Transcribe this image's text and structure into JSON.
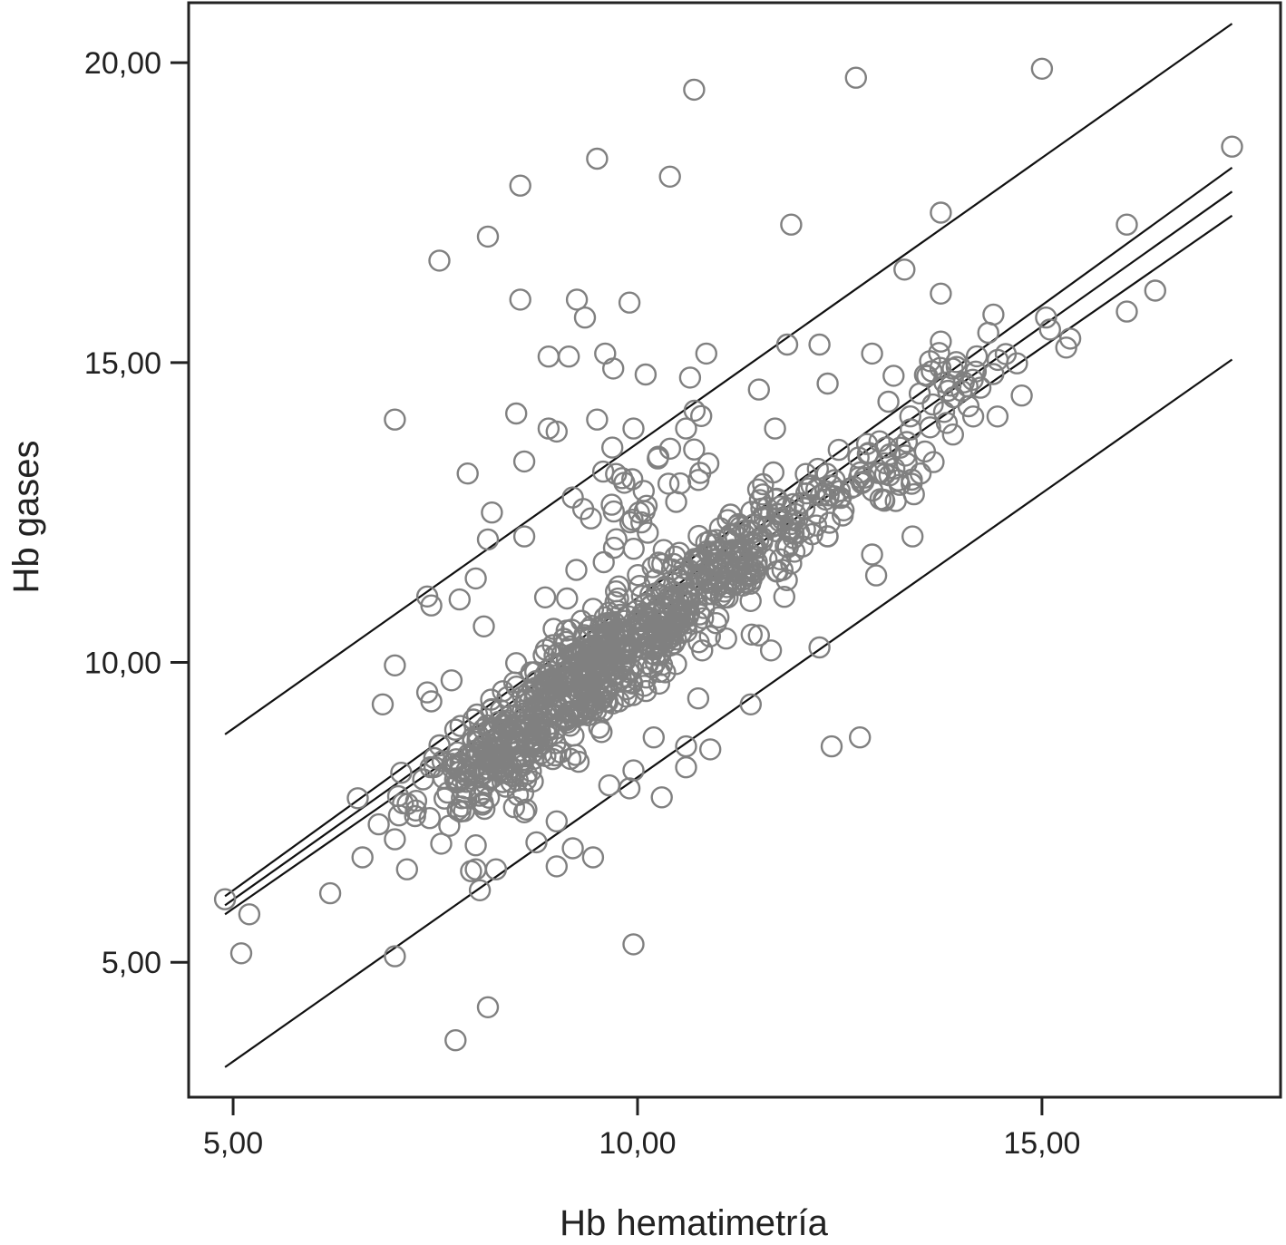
{
  "chart_data": {
    "type": "scatter",
    "xlabel": "Hb hematimetría",
    "ylabel": "Hb gases",
    "xlim": [
      4.45,
      17.95
    ],
    "ylim": [
      2.75,
      21.0
    ],
    "xticks": [
      {
        "value": 5,
        "label": "5,00"
      },
      {
        "value": 10,
        "label": "10,00"
      },
      {
        "value": 15,
        "label": "15,00"
      }
    ],
    "yticks": [
      {
        "value": 5,
        "label": "5,00"
      },
      {
        "value": 10,
        "label": "10,00"
      },
      {
        "value": 15,
        "label": "15,00"
      },
      {
        "value": 20,
        "label": "20,00"
      }
    ],
    "grid": false,
    "legend": "none",
    "colors": {
      "points": "#808080",
      "lines": "#111111",
      "frame": "#222222"
    },
    "lines": [
      {
        "x": [
          4.9,
          17.35
        ],
        "y": [
          8.8,
          20.65
        ]
      },
      {
        "x": [
          4.9,
          17.35
        ],
        "y": [
          6.1,
          18.25
        ]
      },
      {
        "x": [
          4.9,
          17.35
        ],
        "y": [
          5.95,
          17.85
        ]
      },
      {
        "x": [
          4.9,
          17.35
        ],
        "y": [
          5.8,
          17.45
        ]
      },
      {
        "x": [
          4.9,
          17.35
        ],
        "y": [
          3.25,
          15.05
        ]
      }
    ],
    "points": [
      {
        "x": 15.0,
        "y": 19.9
      },
      {
        "x": 12.7,
        "y": 19.75
      },
      {
        "x": 10.7,
        "y": 19.55
      },
      {
        "x": 9.5,
        "y": 18.4
      },
      {
        "x": 10.4,
        "y": 18.1
      },
      {
        "x": 8.55,
        "y": 17.95
      },
      {
        "x": 17.35,
        "y": 18.6
      },
      {
        "x": 13.75,
        "y": 17.5
      },
      {
        "x": 11.9,
        "y": 17.3
      },
      {
        "x": 16.05,
        "y": 17.3
      },
      {
        "x": 8.15,
        "y": 17.1
      },
      {
        "x": 7.55,
        "y": 16.7
      },
      {
        "x": 13.3,
        "y": 16.55
      },
      {
        "x": 9.25,
        "y": 16.05
      },
      {
        "x": 9.9,
        "y": 16.0
      },
      {
        "x": 8.55,
        "y": 16.05
      },
      {
        "x": 13.75,
        "y": 16.15
      },
      {
        "x": 16.4,
        "y": 16.2
      },
      {
        "x": 16.05,
        "y": 15.85
      },
      {
        "x": 9.35,
        "y": 15.75
      },
      {
        "x": 14.4,
        "y": 15.8
      },
      {
        "x": 15.35,
        "y": 15.4
      },
      {
        "x": 15.05,
        "y": 15.75
      },
      {
        "x": 15.1,
        "y": 15.55
      },
      {
        "x": 15.3,
        "y": 15.25
      },
      {
        "x": 13.75,
        "y": 15.35
      },
      {
        "x": 12.9,
        "y": 15.15
      },
      {
        "x": 9.6,
        "y": 15.15
      },
      {
        "x": 8.9,
        "y": 15.1
      },
      {
        "x": 9.15,
        "y": 15.1
      },
      {
        "x": 10.85,
        "y": 15.15
      },
      {
        "x": 11.85,
        "y": 15.3
      },
      {
        "x": 12.25,
        "y": 15.3
      },
      {
        "x": 9.7,
        "y": 14.9
      },
      {
        "x": 10.1,
        "y": 14.8
      },
      {
        "x": 10.65,
        "y": 14.75
      },
      {
        "x": 12.35,
        "y": 14.65
      },
      {
        "x": 14.75,
        "y": 14.45
      },
      {
        "x": 14.45,
        "y": 14.1
      },
      {
        "x": 14.15,
        "y": 14.1
      },
      {
        "x": 7.0,
        "y": 14.05
      },
      {
        "x": 8.5,
        "y": 14.15
      },
      {
        "x": 8.9,
        "y": 13.9
      },
      {
        "x": 9.0,
        "y": 13.85
      },
      {
        "x": 9.5,
        "y": 14.05
      },
      {
        "x": 9.95,
        "y": 13.9
      },
      {
        "x": 10.6,
        "y": 13.9
      },
      {
        "x": 11.7,
        "y": 13.9
      },
      {
        "x": 11.5,
        "y": 14.55
      },
      {
        "x": 13.9,
        "y": 13.8
      },
      {
        "x": 13.65,
        "y": 14.3
      },
      {
        "x": 8.6,
        "y": 13.35
      },
      {
        "x": 7.9,
        "y": 13.15
      },
      {
        "x": 10.25,
        "y": 13.4
      },
      {
        "x": 10.7,
        "y": 13.55
      },
      {
        "x": 13.5,
        "y": 13.15
      },
      {
        "x": 11.55,
        "y": 12.8
      },
      {
        "x": 9.2,
        "y": 12.75
      },
      {
        "x": 8.2,
        "y": 12.5
      },
      {
        "x": 8.6,
        "y": 12.1
      },
      {
        "x": 8.15,
        "y": 12.05
      },
      {
        "x": 13.4,
        "y": 12.1
      },
      {
        "x": 12.35,
        "y": 12.1
      },
      {
        "x": 12.9,
        "y": 11.8
      },
      {
        "x": 12.95,
        "y": 11.45
      },
      {
        "x": 11.9,
        "y": 11.65
      },
      {
        "x": 7.4,
        "y": 11.1
      },
      {
        "x": 7.45,
        "y": 10.95
      },
      {
        "x": 7.8,
        "y": 11.05
      },
      {
        "x": 8.0,
        "y": 11.4
      },
      {
        "x": 8.1,
        "y": 10.6
      },
      {
        "x": 11.5,
        "y": 10.45
      },
      {
        "x": 11.65,
        "y": 10.2
      },
      {
        "x": 12.25,
        "y": 10.25
      },
      {
        "x": 10.8,
        "y": 10.2
      },
      {
        "x": 11.0,
        "y": 10.75
      },
      {
        "x": 7.0,
        "y": 9.95
      },
      {
        "x": 7.4,
        "y": 9.5
      },
      {
        "x": 7.45,
        "y": 9.35
      },
      {
        "x": 7.7,
        "y": 9.7
      },
      {
        "x": 6.85,
        "y": 9.3
      },
      {
        "x": 10.75,
        "y": 9.4
      },
      {
        "x": 11.4,
        "y": 9.3
      },
      {
        "x": 12.4,
        "y": 8.6
      },
      {
        "x": 12.75,
        "y": 8.75
      },
      {
        "x": 10.9,
        "y": 8.55
      },
      {
        "x": 10.6,
        "y": 8.6
      },
      {
        "x": 10.6,
        "y": 8.25
      },
      {
        "x": 10.2,
        "y": 8.75
      },
      {
        "x": 9.95,
        "y": 8.2
      },
      {
        "x": 9.9,
        "y": 7.9
      },
      {
        "x": 10.3,
        "y": 7.75
      },
      {
        "x": 9.65,
        "y": 7.95
      },
      {
        "x": 7.35,
        "y": 8.05
      },
      {
        "x": 7.1,
        "y": 7.65
      },
      {
        "x": 7.05,
        "y": 7.45
      },
      {
        "x": 6.8,
        "y": 7.3
      },
      {
        "x": 7.0,
        "y": 7.05
      },
      {
        "x": 6.6,
        "y": 6.75
      },
      {
        "x": 7.15,
        "y": 6.55
      },
      {
        "x": 6.2,
        "y": 6.15
      },
      {
        "x": 8.0,
        "y": 6.95
      },
      {
        "x": 8.0,
        "y": 6.55
      },
      {
        "x": 8.25,
        "y": 6.55
      },
      {
        "x": 8.05,
        "y": 6.2
      },
      {
        "x": 8.6,
        "y": 7.5
      },
      {
        "x": 8.75,
        "y": 7.0
      },
      {
        "x": 9.0,
        "y": 6.6
      },
      {
        "x": 9.2,
        "y": 6.9
      },
      {
        "x": 9.45,
        "y": 6.75
      },
      {
        "x": 9.0,
        "y": 7.35
      },
      {
        "x": 4.9,
        "y": 6.05
      },
      {
        "x": 5.2,
        "y": 5.8
      },
      {
        "x": 5.1,
        "y": 5.15
      },
      {
        "x": 7.0,
        "y": 5.1
      },
      {
        "x": 9.95,
        "y": 5.3
      },
      {
        "x": 8.15,
        "y": 4.25
      },
      {
        "x": 7.75,
        "y": 3.7
      }
    ],
    "dense_points": [
      {
        "cx": 9.5,
        "cy": 9.9,
        "sx": 0.85,
        "sy": 0.9,
        "rho": 0.86,
        "n": 520
      },
      {
        "cx": 8.2,
        "cy": 8.3,
        "sx": 0.45,
        "sy": 0.5,
        "rho": 0.6,
        "n": 120
      },
      {
        "cx": 11.2,
        "cy": 11.7,
        "sx": 0.55,
        "sy": 0.6,
        "rho": 0.7,
        "n": 140
      },
      {
        "cx": 12.6,
        "cy": 13.0,
        "sx": 0.55,
        "sy": 0.45,
        "rho": 0.65,
        "n": 70
      },
      {
        "cx": 14.0,
        "cy": 14.7,
        "sx": 0.4,
        "sy": 0.35,
        "rho": 0.5,
        "n": 30
      },
      {
        "cx": 10.2,
        "cy": 12.6,
        "sx": 0.6,
        "sy": 0.8,
        "rho": 0.3,
        "n": 40
      }
    ]
  }
}
